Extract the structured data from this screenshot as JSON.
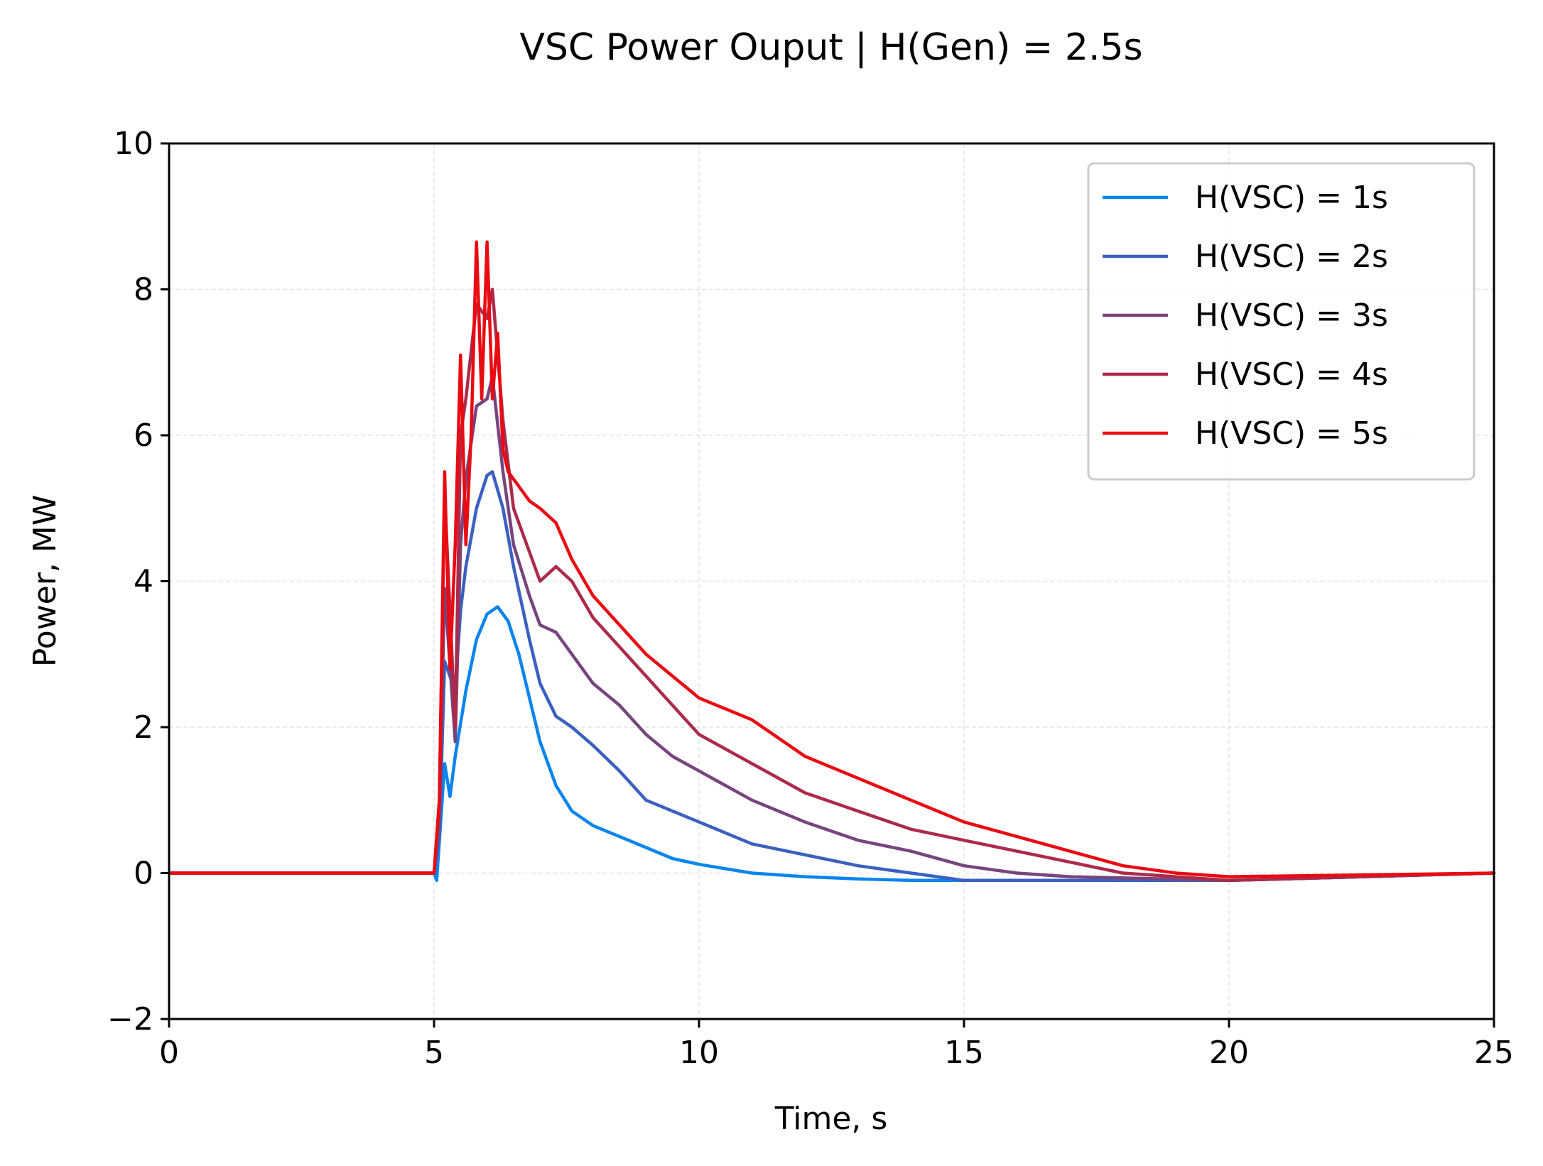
{
  "chart_data": {
    "type": "line",
    "title": "VSC Power Ouput  |  H(Gen) = 2.5s",
    "xlabel": "Time, s",
    "ylabel": "Power, MW",
    "xlim": [
      0,
      25
    ],
    "ylim": [
      -2,
      10
    ],
    "xticks": [
      "0",
      "5",
      "10",
      "15",
      "20",
      "25"
    ],
    "yticks": [
      "−2",
      "0",
      "2",
      "4",
      "6",
      "8",
      "10"
    ],
    "grid": true,
    "legend_position": "top-right",
    "series": [
      {
        "name": "H(VSC) = 1s",
        "color": "#0a84ee",
        "x": [
          0,
          5.0,
          5.05,
          5.2,
          5.3,
          5.4,
          5.6,
          5.8,
          6.0,
          6.2,
          6.4,
          6.6,
          6.8,
          7.0,
          7.3,
          7.6,
          8.0,
          8.5,
          9.0,
          9.5,
          10,
          11,
          12,
          13,
          14,
          15,
          17,
          20,
          25
        ],
        "y": [
          0,
          0,
          -0.1,
          1.5,
          1.05,
          1.6,
          2.5,
          3.2,
          3.55,
          3.65,
          3.45,
          3.0,
          2.4,
          1.8,
          1.2,
          0.85,
          0.65,
          0.5,
          0.35,
          0.2,
          0.12,
          0.0,
          -0.05,
          -0.08,
          -0.1,
          -0.1,
          -0.1,
          -0.1,
          0.0
        ]
      },
      {
        "name": "H(VSC) = 2s",
        "color": "#3a60c0",
        "x": [
          0,
          5.0,
          5.1,
          5.2,
          5.4,
          5.5,
          5.6,
          5.8,
          6.0,
          6.1,
          6.3,
          6.5,
          6.8,
          7.0,
          7.3,
          7.6,
          8.0,
          8.5,
          9.0,
          9.5,
          10,
          11,
          12,
          13,
          14,
          15,
          17,
          20,
          25
        ],
        "y": [
          0,
          0,
          0.5,
          2.9,
          2.5,
          3.6,
          4.2,
          5.0,
          5.45,
          5.5,
          5.0,
          4.2,
          3.2,
          2.6,
          2.15,
          2.0,
          1.75,
          1.4,
          1.0,
          0.85,
          0.7,
          0.4,
          0.25,
          0.1,
          0.0,
          -0.1,
          -0.1,
          -0.1,
          0.0
        ]
      },
      {
        "name": "H(VSC) = 3s",
        "color": "#77457e",
        "x": [
          0,
          5.0,
          5.1,
          5.2,
          5.4,
          5.5,
          5.6,
          5.8,
          6.0,
          6.1,
          6.3,
          6.5,
          6.8,
          7.0,
          7.3,
          7.6,
          8.0,
          8.5,
          9.0,
          9.5,
          10,
          11,
          12,
          13,
          14,
          15,
          16,
          17,
          20,
          25
        ],
        "y": [
          0,
          0,
          0.8,
          3.9,
          1.8,
          4.5,
          5.4,
          6.4,
          6.5,
          6.8,
          5.5,
          4.5,
          3.8,
          3.4,
          3.3,
          3.0,
          2.6,
          2.3,
          1.9,
          1.6,
          1.4,
          1.0,
          0.7,
          0.45,
          0.3,
          0.1,
          0.0,
          -0.05,
          -0.1,
          0.0
        ]
      },
      {
        "name": "H(VSC) = 4s",
        "color": "#ac2a4a",
        "x": [
          0,
          5.0,
          5.1,
          5.2,
          5.4,
          5.5,
          5.6,
          5.8,
          6.0,
          6.1,
          6.3,
          6.5,
          6.8,
          7.0,
          7.3,
          7.6,
          8.0,
          8.5,
          9.0,
          9.5,
          10,
          11,
          12,
          13,
          14,
          15,
          16,
          17,
          18,
          20,
          25
        ],
        "y": [
          0,
          0,
          1.0,
          5.2,
          2.0,
          6.0,
          6.5,
          7.8,
          7.6,
          8.0,
          6.2,
          5.0,
          4.4,
          4.0,
          4.2,
          4.0,
          3.5,
          3.1,
          2.7,
          2.3,
          1.9,
          1.5,
          1.1,
          0.85,
          0.6,
          0.45,
          0.3,
          0.15,
          0.0,
          -0.1,
          0.0
        ]
      },
      {
        "name": "H(VSC) = 5s",
        "color": "#ea0a12",
        "x": [
          0,
          5.0,
          5.1,
          5.2,
          5.3,
          5.4,
          5.5,
          5.6,
          5.7,
          5.8,
          5.9,
          6.0,
          6.1,
          6.2,
          6.3,
          6.4,
          6.6,
          6.8,
          7.0,
          7.3,
          7.6,
          8.0,
          8.5,
          9.0,
          9.5,
          10,
          11,
          12,
          13,
          14,
          15,
          16,
          17,
          18,
          19,
          20,
          25
        ],
        "y": [
          0,
          0,
          1.0,
          5.5,
          2.8,
          4.5,
          7.1,
          4.5,
          6.0,
          8.65,
          6.5,
          8.65,
          6.5,
          7.4,
          5.8,
          5.5,
          5.3,
          5.1,
          5.0,
          4.8,
          4.3,
          3.8,
          3.4,
          3.0,
          2.7,
          2.4,
          2.1,
          1.6,
          1.3,
          1.0,
          0.7,
          0.5,
          0.3,
          0.1,
          0.0,
          -0.05,
          0.0
        ]
      }
    ]
  }
}
